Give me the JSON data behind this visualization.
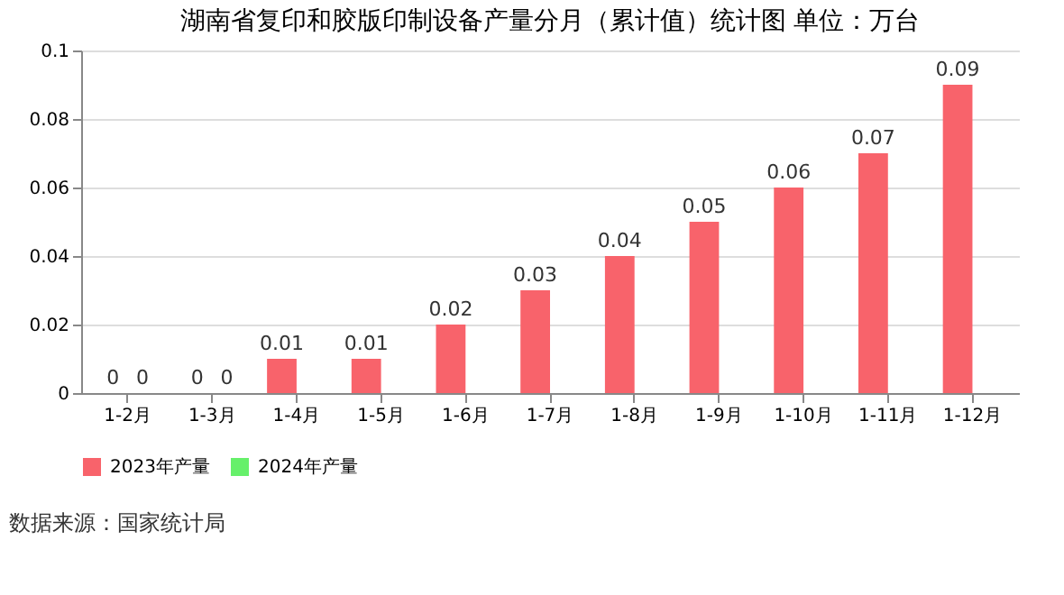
{
  "chart_data": {
    "type": "bar",
    "title": "湖南省复印和胶版印制设备产量分月（累计值）统计图 单位：万台",
    "categories": [
      "1-2月",
      "1-3月",
      "1-4月",
      "1-5月",
      "1-6月",
      "1-7月",
      "1-8月",
      "1-9月",
      "1-10月",
      "1-11月",
      "1-12月"
    ],
    "series": [
      {
        "name": "2023年产量",
        "color": "#f8636b",
        "values": [
          0,
          0,
          0.01,
          0.01,
          0.02,
          0.03,
          0.04,
          0.05,
          0.06,
          0.07,
          0.09
        ]
      },
      {
        "name": "2024年产量",
        "color": "#66f06a",
        "values": [
          0,
          0,
          null,
          null,
          null,
          null,
          null,
          null,
          null,
          null,
          null
        ]
      }
    ],
    "ylim": [
      0,
      0.1
    ],
    "yticks": [
      0,
      0.02,
      0.04,
      0.06,
      0.08,
      0.1
    ],
    "grid": "y",
    "legend": "bottom",
    "data_labels": true,
    "annotations": [
      "数据来源：国家统计局"
    ]
  }
}
